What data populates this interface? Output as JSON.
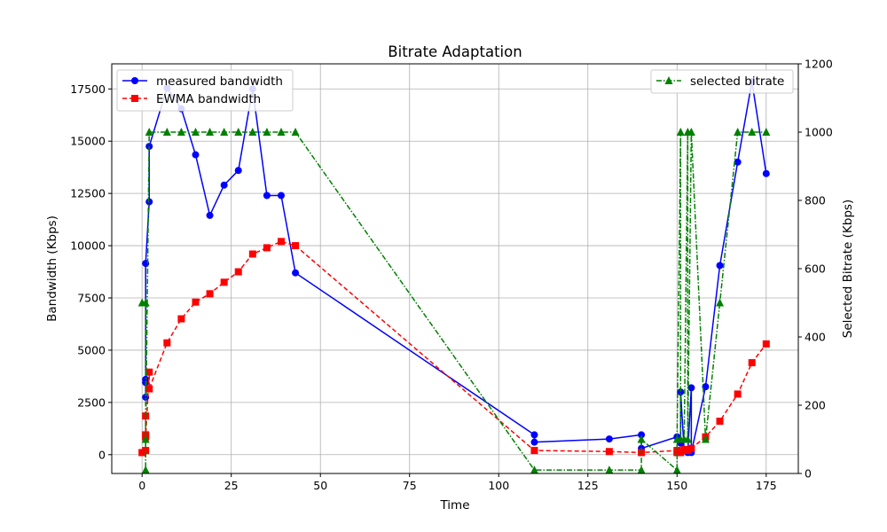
{
  "chart_data": {
    "type": "line",
    "title": "Bitrate Adaptation",
    "xlabel": "Time",
    "ylabel": "Bandwidth (Kbps)",
    "y2label": "Selected Bitrate (Kbps)",
    "xlim": [
      -8.5,
      184
    ],
    "ylim": [
      -900,
      18700
    ],
    "y2lim": [
      0,
      1200
    ],
    "xticks": [
      0,
      25,
      50,
      75,
      100,
      125,
      150,
      175
    ],
    "yticks": [
      0,
      2500,
      5000,
      7500,
      10000,
      12500,
      15000,
      17500
    ],
    "y2ticks": [
      0,
      200,
      400,
      600,
      800,
      1000,
      1200
    ],
    "grid": true,
    "legend": [
      {
        "label": "measured bandwidth",
        "placement": "top-left"
      },
      {
        "label": "EWMA bandwidth",
        "placement": "top-left"
      },
      {
        "label": "selected bitrate",
        "placement": "top-right"
      }
    ],
    "series": [
      {
        "name": "measured bandwidth",
        "axis": "left",
        "color": "#0000ff",
        "marker": "circle",
        "linestyle": "solid",
        "x": [
          1,
          1,
          1,
          1,
          2,
          2,
          7,
          11,
          15,
          19,
          23,
          27,
          31,
          35,
          39,
          43,
          110,
          110,
          131,
          140,
          140,
          150,
          151,
          151,
          152,
          153,
          154,
          154,
          158,
          162,
          167,
          171,
          175
        ],
        "y": [
          3600,
          2750,
          3450,
          9150,
          12100,
          14750,
          17550,
          16550,
          14350,
          11450,
          12900,
          13600,
          17500,
          12400,
          12400,
          8700,
          950,
          600,
          750,
          950,
          300,
          850,
          550,
          3000,
          200,
          100,
          3200,
          100,
          3250,
          9050,
          14000,
          17850,
          13450
        ]
      },
      {
        "name": "EWMA bandwidth",
        "axis": "left",
        "color": "#ff0000",
        "marker": "square",
        "linestyle": "dashed",
        "x": [
          0,
          1,
          1,
          1,
          1,
          2,
          2,
          7,
          11,
          15,
          19,
          23,
          27,
          31,
          35,
          39,
          43,
          110,
          131,
          140,
          150,
          150,
          151,
          152,
          153,
          154,
          158,
          162,
          167,
          171,
          175
        ],
        "y": [
          100,
          200,
          950,
          1850,
          850,
          3950,
          3150,
          5350,
          6500,
          7300,
          7700,
          8250,
          8750,
          9600,
          9900,
          10200,
          10000,
          200,
          150,
          100,
          200,
          100,
          100,
          250,
          200,
          300,
          850,
          1600,
          2900,
          4400,
          5300
        ]
      },
      {
        "name": "selected bitrate",
        "axis": "right",
        "color": "#008000",
        "marker": "triangle",
        "linestyle": "dashdot",
        "x": [
          0,
          1,
          1,
          1,
          2,
          7,
          11,
          15,
          19,
          23,
          27,
          31,
          35,
          39,
          43,
          110,
          131,
          140,
          140,
          150,
          150,
          151,
          151,
          152,
          153,
          153,
          154,
          158,
          162,
          167,
          171,
          175
        ],
        "y": [
          500,
          500,
          10,
          100,
          1000,
          1000,
          1000,
          1000,
          1000,
          1000,
          1000,
          1000,
          1000,
          1000,
          1000,
          10,
          10,
          10,
          100,
          10,
          100,
          1000,
          100,
          100,
          1000,
          100,
          1000,
          100,
          500,
          1000,
          1000,
          1000
        ]
      }
    ]
  }
}
